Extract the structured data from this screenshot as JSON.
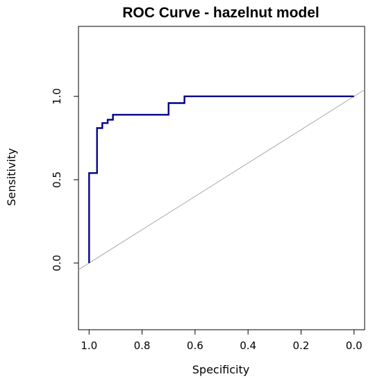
{
  "chart_data": {
    "type": "line",
    "title": "ROC Curve - hazelnut model",
    "xlabel": "Specificity",
    "ylabel": "Sensitivity",
    "xlim": [
      1.04,
      -0.04
    ],
    "ylim": [
      -0.4,
      1.42
    ],
    "x_reversed": true,
    "grid": false,
    "legend": "none",
    "x_ticks": [
      {
        "value": 1.0,
        "label": "1.0"
      },
      {
        "value": 0.8,
        "label": "0.8"
      },
      {
        "value": 0.6,
        "label": "0.6"
      },
      {
        "value": 0.4,
        "label": "0.4"
      },
      {
        "value": 0.2,
        "label": "0.2"
      },
      {
        "value": 0.0,
        "label": "0.0"
      }
    ],
    "y_ticks": [
      {
        "value": 0.0,
        "label": "0.0"
      },
      {
        "value": 0.5,
        "label": "0.5"
      },
      {
        "value": 1.0,
        "label": "1.0"
      }
    ],
    "series": [
      {
        "color": "#00008b",
        "specificity": [
          1.0,
          1.0,
          0.97,
          0.97,
          0.95,
          0.95,
          0.93,
          0.93,
          0.91,
          0.91,
          0.7,
          0.7,
          0.64,
          0.64,
          0.0
        ],
        "sensitivity": [
          0.0,
          0.54,
          0.54,
          0.81,
          0.81,
          0.84,
          0.84,
          0.86,
          0.86,
          0.89,
          0.89,
          0.96,
          0.96,
          1.0,
          1.0
        ]
      }
    ],
    "reference_line": {
      "color": "#a9a9a9",
      "specificity": [
        1.04,
        -0.04
      ],
      "sensitivity": [
        -0.04,
        1.04
      ]
    }
  }
}
